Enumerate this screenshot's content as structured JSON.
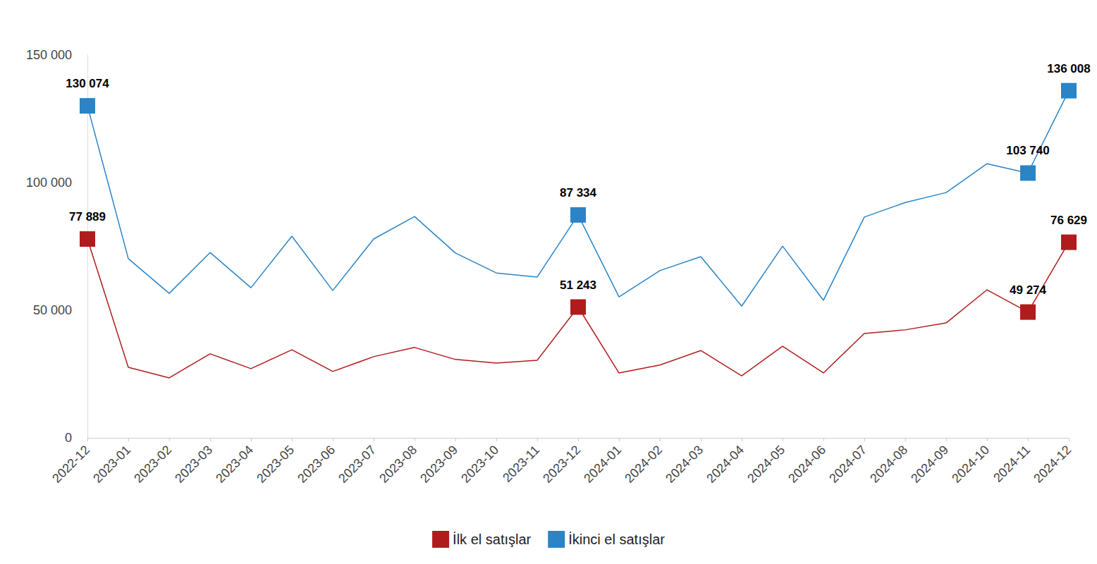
{
  "chart_data": {
    "type": "line",
    "categories": [
      "2022-12",
      "2023-01",
      "2023-02",
      "2023-03",
      "2023-04",
      "2023-05",
      "2023-06",
      "2023-07",
      "2023-08",
      "2023-09",
      "2023-10",
      "2023-11",
      "2023-12",
      "2024-01",
      "2024-02",
      "2024-03",
      "2024-04",
      "2024-05",
      "2024-06",
      "2024-07",
      "2024-08",
      "2024-09",
      "2024-10",
      "2024-11",
      "2024-12"
    ],
    "series": [
      {
        "name": "İlk el satışlar",
        "color": "#b01c1c",
        "marker": "square",
        "values": [
          77889,
          27600,
          23500,
          32900,
          27100,
          34500,
          26000,
          31800,
          35400,
          30700,
          29300,
          30400,
          51243,
          25400,
          28500,
          34200,
          24300,
          35900,
          25425,
          40900,
          42300,
          45000,
          58000,
          49274,
          76629
        ],
        "value_labels": [
          "77 889",
          null,
          null,
          null,
          null,
          null,
          null,
          null,
          null,
          null,
          null,
          null,
          "51 243",
          null,
          null,
          null,
          null,
          null,
          null,
          null,
          null,
          null,
          null,
          "49 274",
          "76 629"
        ]
      },
      {
        "name": "İkinci el satışlar",
        "color": "#2a84c6",
        "marker": "square",
        "values": [
          130074,
          70200,
          56600,
          72600,
          58800,
          79000,
          57700,
          77900,
          86700,
          72400,
          64600,
          63000,
          87334,
          55200,
          65500,
          71000,
          51600,
          75100,
          53888,
          86500,
          92200,
          96100,
          107400,
          103740,
          136008
        ],
        "value_labels": [
          "130 074",
          null,
          null,
          null,
          null,
          null,
          null,
          null,
          null,
          null,
          null,
          null,
          "87 334",
          null,
          null,
          null,
          null,
          null,
          null,
          null,
          null,
          null,
          null,
          "103 740",
          "136 008"
        ]
      }
    ],
    "ylim": [
      0,
      150000
    ],
    "yticks": [
      0,
      {
        "value": 50000,
        "label": "50 000"
      },
      {
        "value": 100000,
        "label": "100 000"
      },
      {
        "value": 150000,
        "label": "150 000"
      }
    ],
    "grid": false,
    "legend": "bottom",
    "data_labels": true
  }
}
